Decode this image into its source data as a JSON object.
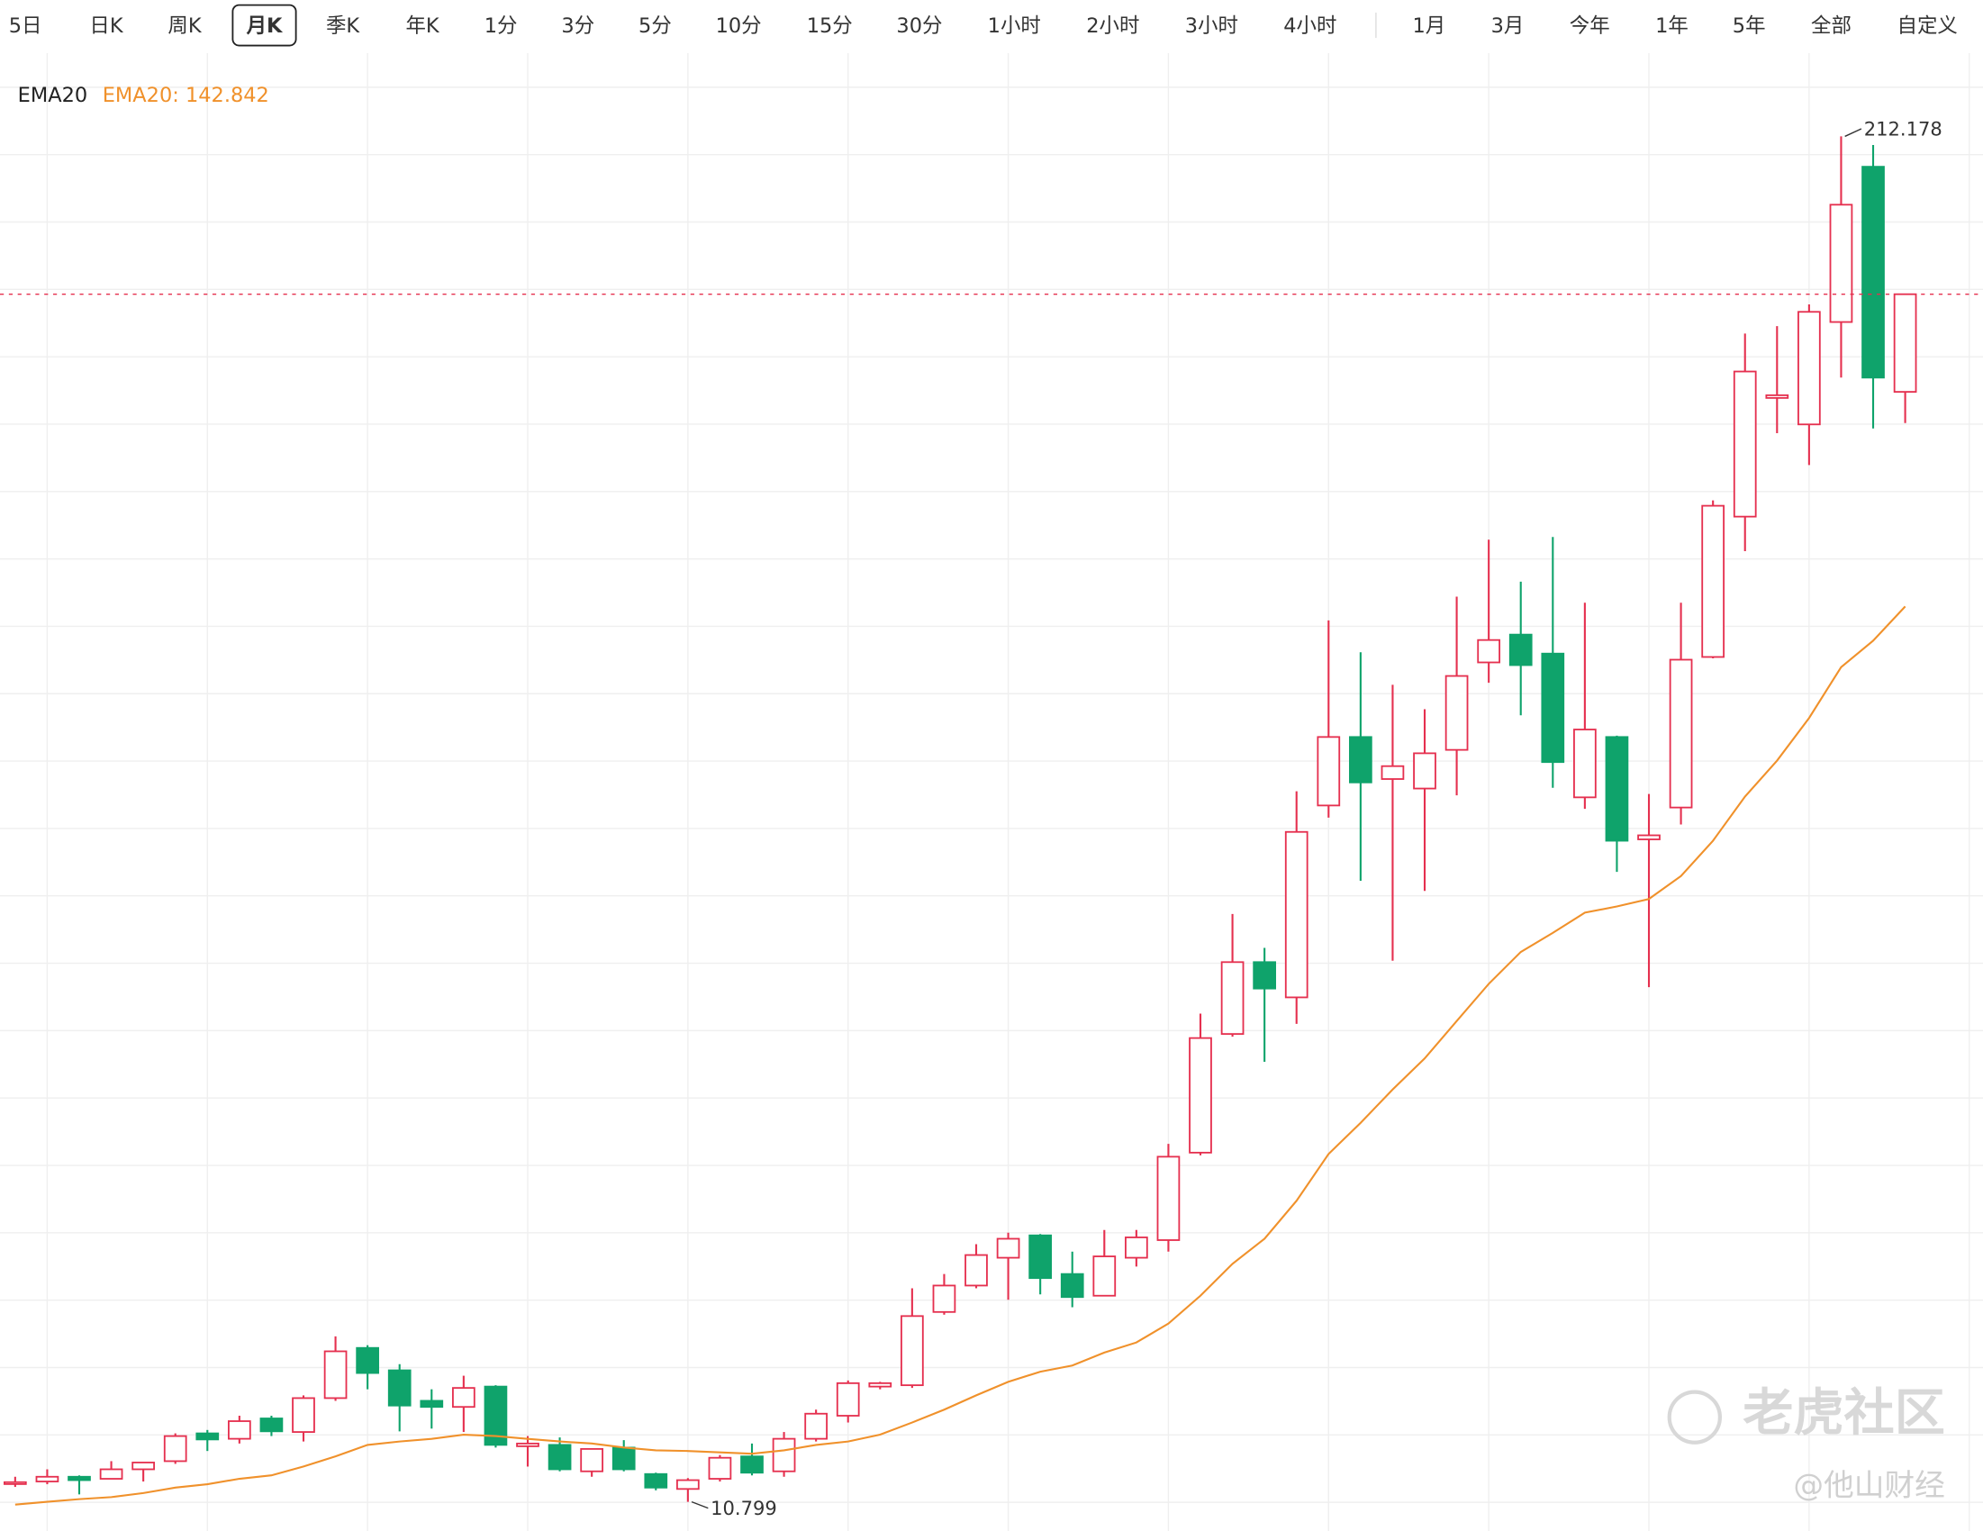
{
  "toolbar": {
    "periods": [
      "5日",
      "日K",
      "周K",
      "月K",
      "季K",
      "年K",
      "1分",
      "3分",
      "5分",
      "10分",
      "15分",
      "30分",
      "1小时",
      "2小时",
      "3小时",
      "4小时"
    ],
    "ranges": [
      "1月",
      "3月",
      "今年",
      "1年",
      "5年",
      "全部",
      "自定义"
    ],
    "selected_period": 3
  },
  "chart_data": {
    "type": "candlestick",
    "ylim": [
      6.5,
      223.9
    ],
    "up_color": "#e5304f",
    "down_color": "#0fa36b",
    "open": [
      13.5,
      13.8,
      14.5,
      14.2,
      15.6,
      16.8,
      20.9,
      20.1,
      23.1,
      21.1,
      26.1,
      33.5,
      30.2,
      25.7,
      24.8,
      27.8,
      19.0,
      19.2,
      15.3,
      18.8,
      14.9,
      12.7,
      14.2,
      17.5,
      15.3,
      20.1,
      23.5,
      27.8,
      28.0,
      38.8,
      42.7,
      46.8,
      50.1,
      44.4,
      41.2,
      46.8,
      49.4,
      62.3,
      79.8,
      90.4,
      85.2,
      113.5,
      123.6,
      117.4,
      116.0,
      121.7,
      134.6,
      138.7,
      135.9,
      114.7,
      123.6,
      108.5,
      113.2,
      135.4,
      156.1,
      173.6,
      169.7,
      184.8,
      207.7,
      174.5
    ],
    "high": [
      14.5,
      15.6,
      14.7,
      16.8,
      16.6,
      20.9,
      21.4,
      23.5,
      23.5,
      26.5,
      35.2,
      33.9,
      31.1,
      27.4,
      29.4,
      28.0,
      20.5,
      20.3,
      18.6,
      19.9,
      15.1,
      14.3,
      17.7,
      19.4,
      21.1,
      24.4,
      28.7,
      28.5,
      42.3,
      44.4,
      48.8,
      50.5,
      50.3,
      47.7,
      50.9,
      50.9,
      63.6,
      82.8,
      97.5,
      92.5,
      115.6,
      140.8,
      136.1,
      131.3,
      127.7,
      144.3,
      152.7,
      146.5,
      153.1,
      143.4,
      123.8,
      115.2,
      143.4,
      158.5,
      183.1,
      184.2,
      187.4,
      212.178,
      210.9,
      188.9
    ],
    "low": [
      13.0,
      13.4,
      11.9,
      14.2,
      13.8,
      16.4,
      18.3,
      19.4,
      20.5,
      19.7,
      25.7,
      27.4,
      21.2,
      21.6,
      21.1,
      18.8,
      16.0,
      15.3,
      14.5,
      15.3,
      12.5,
      10.799,
      13.8,
      14.7,
      14.5,
      19.7,
      22.5,
      27.4,
      27.6,
      38.4,
      42.3,
      40.6,
      41.4,
      39.5,
      41.2,
      45.5,
      47.7,
      61.9,
      79.4,
      75.7,
      81.3,
      111.7,
      102.4,
      90.6,
      100.9,
      115.0,
      131.6,
      126.8,
      116.1,
      113.0,
      103.7,
      86.7,
      110.7,
      135.2,
      151.0,
      168.4,
      163.7,
      176.6,
      169.1,
      169.9
    ],
    "close": [
      13.7,
      14.5,
      14.0,
      15.6,
      16.6,
      20.5,
      20.0,
      22.7,
      21.2,
      26.1,
      33.0,
      29.8,
      25.0,
      24.8,
      27.6,
      19.2,
      19.4,
      15.6,
      18.6,
      15.6,
      12.9,
      14.0,
      17.3,
      15.1,
      20.1,
      23.8,
      28.3,
      28.3,
      38.2,
      42.7,
      47.2,
      49.6,
      43.8,
      41.0,
      47.0,
      49.8,
      61.7,
      79.2,
      90.4,
      86.5,
      109.6,
      123.6,
      116.9,
      119.3,
      121.2,
      132.6,
      137.9,
      134.2,
      119.9,
      124.7,
      108.3,
      109.1,
      135.0,
      157.7,
      177.5,
      174.0,
      186.3,
      202.1,
      176.6,
      188.9
    ],
    "ema": {
      "name": "EMA20",
      "color": "#f0912b",
      "current_label": "EMA20: 142.842",
      "values": [
        10.4,
        10.8,
        11.2,
        11.5,
        12.1,
        12.9,
        13.4,
        14.2,
        14.7,
        16.0,
        17.5,
        19.2,
        19.7,
        20.1,
        20.7,
        20.5,
        20.1,
        19.7,
        19.4,
        18.8,
        18.4,
        18.3,
        18.1,
        17.9,
        18.4,
        19.2,
        19.7,
        20.7,
        22.5,
        24.4,
        26.5,
        28.5,
        30.0,
        30.9,
        32.8,
        34.3,
        37.1,
        41.2,
        45.9,
        49.6,
        55.2,
        62.1,
        66.7,
        71.6,
        76.2,
        81.7,
        87.2,
        91.9,
        94.7,
        97.7,
        98.6,
        99.7,
        103.1,
        108.3,
        114.8,
        120.1,
        126.4,
        133.9,
        137.8,
        142.842
      ]
    },
    "max_label": "212.178",
    "min_label": "10.799",
    "last_price_line": true,
    "grid": true
  },
  "watermark": {
    "brand": "老虎社区",
    "author": "@他山财经"
  }
}
